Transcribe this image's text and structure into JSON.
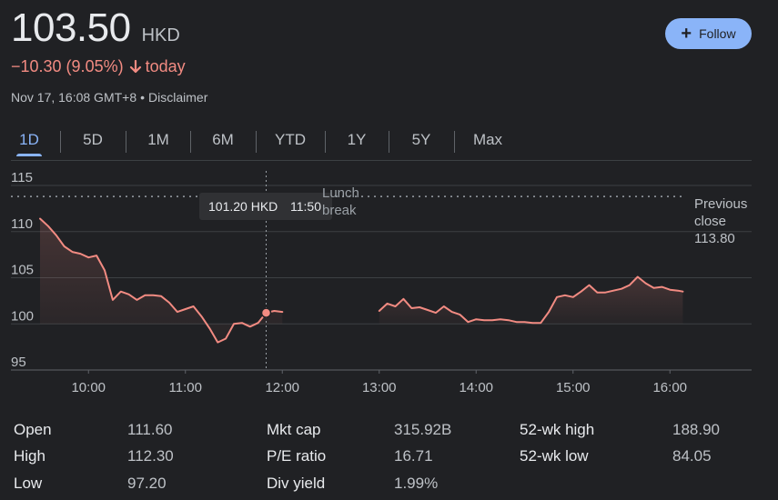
{
  "quote": {
    "price": "103.50",
    "currency": "HKD",
    "change": "−10.30 (9.05%)",
    "change_period": "today",
    "timestamp": "Nov 17, 16:08 GMT+8",
    "disclaimer": "Disclaimer",
    "negative_color": "#f28b82"
  },
  "follow_button": {
    "label": "Follow",
    "icon": "plus-icon"
  },
  "tabs": [
    {
      "label": "1D",
      "active": true
    },
    {
      "label": "5D"
    },
    {
      "label": "1M"
    },
    {
      "label": "6M"
    },
    {
      "label": "YTD"
    },
    {
      "label": "1Y"
    },
    {
      "label": "5Y"
    },
    {
      "label": "Max"
    }
  ],
  "chart_data": {
    "type": "line",
    "y_ticks": [
      "115",
      "110",
      "105",
      "100",
      "95"
    ],
    "x_ticks": [
      "10:00",
      "11:00",
      "12:00",
      "13:00",
      "14:00",
      "15:00",
      "16:00"
    ],
    "ylim": [
      95,
      115
    ],
    "xlim": [
      "09:30",
      "16:50"
    ],
    "grid": true,
    "previous_close": {
      "label_line1": "Previous",
      "label_line2": "close",
      "value": "113.80"
    },
    "lunch_break_label": [
      "Lunch",
      "break"
    ],
    "tooltip": {
      "price": "101.20 HKD",
      "time": "11:50"
    },
    "line_color": "#f28b82",
    "series": [
      {
        "points": [
          [
            "09:30",
            111.4
          ],
          [
            "09:35",
            110.6
          ],
          [
            "09:40",
            109.6
          ],
          [
            "09:45",
            108.4
          ],
          [
            "09:50",
            107.8
          ],
          [
            "09:55",
            107.6
          ],
          [
            "10:00",
            107.2
          ],
          [
            "10:05",
            107.4
          ],
          [
            "10:10",
            105.8
          ],
          [
            "10:15",
            102.6
          ],
          [
            "10:20",
            103.5
          ],
          [
            "10:25",
            103.2
          ],
          [
            "10:30",
            102.6
          ],
          [
            "10:35",
            103.1
          ],
          [
            "10:40",
            103.1
          ],
          [
            "10:45",
            103.0
          ],
          [
            "10:50",
            102.3
          ],
          [
            "10:55",
            101.3
          ],
          [
            "11:00",
            101.6
          ],
          [
            "11:05",
            101.9
          ],
          [
            "11:10",
            100.8
          ],
          [
            "11:15",
            99.5
          ],
          [
            "11:20",
            98.0
          ],
          [
            "11:25",
            98.4
          ],
          [
            "11:30",
            100.0
          ],
          [
            "11:35",
            100.1
          ],
          [
            "11:40",
            99.7
          ],
          [
            "11:45",
            100.1
          ],
          [
            "11:50",
            101.2
          ],
          [
            "11:55",
            101.4
          ],
          [
            "12:00",
            101.3
          ],
          [
            "13:00",
            101.4
          ],
          [
            "13:05",
            102.2
          ],
          [
            "13:10",
            101.9
          ],
          [
            "13:15",
            102.7
          ],
          [
            "13:20",
            101.7
          ],
          [
            "13:25",
            101.8
          ],
          [
            "13:30",
            101.5
          ],
          [
            "13:35",
            101.2
          ],
          [
            "13:40",
            101.9
          ],
          [
            "13:45",
            101.3
          ],
          [
            "13:50",
            101.0
          ],
          [
            "13:55",
            100.2
          ],
          [
            "14:00",
            100.5
          ],
          [
            "14:05",
            100.4
          ],
          [
            "14:10",
            100.4
          ],
          [
            "14:15",
            100.5
          ],
          [
            "14:20",
            100.4
          ],
          [
            "14:25",
            100.2
          ],
          [
            "14:30",
            100.2
          ],
          [
            "14:35",
            100.1
          ],
          [
            "14:40",
            100.1
          ],
          [
            "14:45",
            101.3
          ],
          [
            "14:50",
            102.9
          ],
          [
            "14:55",
            103.1
          ],
          [
            "15:00",
            102.9
          ],
          [
            "15:05",
            103.5
          ],
          [
            "15:10",
            104.2
          ],
          [
            "15:15",
            103.4
          ],
          [
            "15:20",
            103.4
          ],
          [
            "15:25",
            103.6
          ],
          [
            "15:30",
            103.8
          ],
          [
            "15:35",
            104.2
          ],
          [
            "15:40",
            105.1
          ],
          [
            "15:45",
            104.4
          ],
          [
            "15:50",
            103.9
          ],
          [
            "15:55",
            104.0
          ],
          [
            "16:00",
            103.7
          ],
          [
            "16:05",
            103.6
          ],
          [
            "16:08",
            103.5
          ]
        ]
      }
    ]
  },
  "stats": [
    {
      "label": "Open",
      "value": "111.60"
    },
    {
      "label": "High",
      "value": "112.30"
    },
    {
      "label": "Low",
      "value": "97.20"
    },
    {
      "label": "Mkt cap",
      "value": "315.92B"
    },
    {
      "label": "P/E ratio",
      "value": "16.71"
    },
    {
      "label": "Div yield",
      "value": "1.99%"
    },
    {
      "label": "52-wk high",
      "value": "188.90"
    },
    {
      "label": "52-wk low",
      "value": "84.05"
    }
  ]
}
